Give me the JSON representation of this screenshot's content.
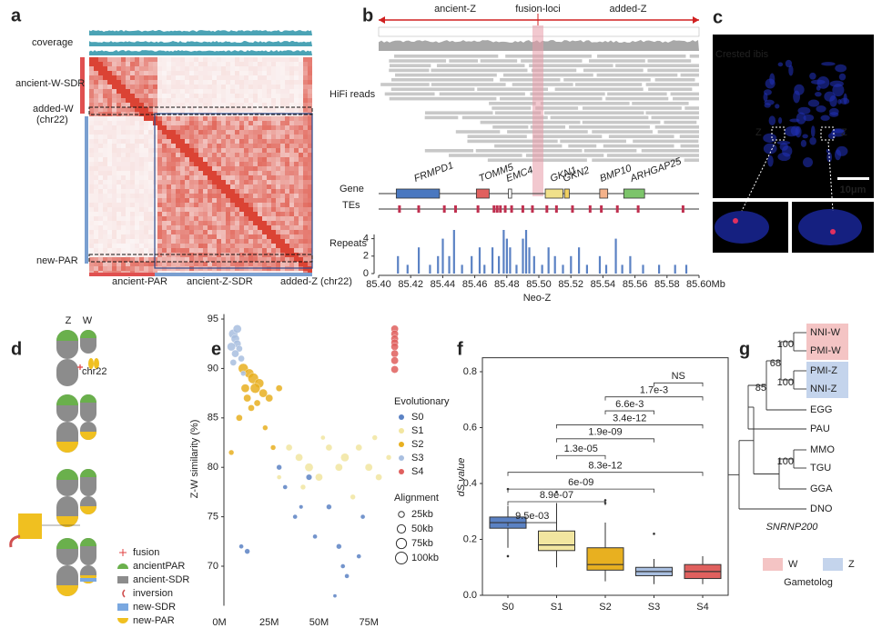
{
  "panel_labels": [
    "a",
    "b",
    "c",
    "d",
    "e",
    "f",
    "g"
  ],
  "heatmap": {
    "track": "coverage",
    "row_labels": [
      "ancient-W-SDR",
      "added-W",
      "(chr22)",
      "new-PAR"
    ],
    "col_labels": [
      "ancient-PAR",
      "ancient-Z-SDR",
      "added-Z (chr22)"
    ]
  },
  "browser": {
    "regions": [
      "ancient-Z",
      "fusion-loci",
      "added-Z"
    ],
    "track_labels": [
      "HiFi reads",
      "Gene",
      "TEs"
    ],
    "genes": [
      {
        "name": "FRMPD1",
        "start": 85.411,
        "end": 85.438,
        "color": "#4a78c0"
      },
      {
        "name": "TOMM5",
        "start": 85.461,
        "end": 85.469,
        "color": "#e0605e"
      },
      {
        "name": "EMC4",
        "start": 85.481,
        "end": 85.483,
        "color": "#ffffff"
      },
      {
        "name": "GKN1",
        "start": 85.504,
        "end": 85.515,
        "color": "#f0e08a"
      },
      {
        "name": "GKN2",
        "start": 85.516,
        "end": 85.519,
        "color": "#f0d060"
      },
      {
        "name": "BMP10",
        "start": 85.538,
        "end": 85.543,
        "color": "#f5b28a"
      },
      {
        "name": "ARHGAP25",
        "start": 85.553,
        "end": 85.566,
        "color": "#7cc46a"
      }
    ],
    "te_positions": [
      85.413,
      85.425,
      85.441,
      85.448,
      85.462,
      85.472,
      85.474,
      85.476,
      85.479,
      85.483,
      85.49,
      85.496,
      85.505,
      85.511,
      85.521,
      85.532,
      85.539,
      85.549,
      85.562,
      85.59
    ]
  },
  "microscopy": {
    "species": "Crested ibis",
    "labels": [
      "Z",
      "Z"
    ],
    "scale": "10μm"
  },
  "diagram": {
    "columns": [
      "Z",
      "W"
    ],
    "chr22": "chr22",
    "legend": [
      "fusion",
      "ancientPAR",
      "ancient-SDR",
      "inversion",
      "new-SDR",
      "new-PAR"
    ]
  },
  "chart_data": [
    {
      "type": "bar",
      "ylabel": "Repeats",
      "xlabel": "Neo-Z",
      "color": "#5b82c4",
      "x": [
        85.412,
        85.418,
        85.425,
        85.432,
        85.437,
        85.44,
        85.444,
        85.447,
        85.452,
        85.458,
        85.463,
        85.466,
        85.471,
        85.475,
        85.478,
        85.48,
        85.482,
        85.486,
        85.49,
        85.492,
        85.494,
        85.497,
        85.502,
        85.506,
        85.51,
        85.515,
        85.52,
        85.525,
        85.53,
        85.538,
        85.542,
        85.548,
        85.552,
        85.557,
        85.565,
        85.575,
        85.585,
        85.592
      ],
      "values": [
        2,
        1,
        3,
        1,
        2,
        4,
        2,
        5,
        1,
        2,
        3,
        1,
        3,
        2,
        5,
        4,
        3,
        1,
        4,
        5,
        3,
        2,
        1,
        3,
        2,
        1,
        2,
        3,
        1,
        2,
        1,
        4,
        1,
        2,
        1,
        1,
        1,
        1
      ],
      "xlim": [
        85.4,
        85.6
      ],
      "xticks": [
        {
          "value": 85.4,
          "label": "85.40"
        },
        {
          "value": 85.42,
          "label": "85.42"
        },
        {
          "value": 85.44,
          "label": "85.44"
        },
        {
          "value": 85.46,
          "label": "85.46"
        },
        {
          "value": 85.48,
          "label": "85.48"
        },
        {
          "value": 85.5,
          "label": "85.50"
        },
        {
          "value": 85.52,
          "label": "85.52"
        },
        {
          "value": 85.54,
          "label": "85.54"
        },
        {
          "value": 85.56,
          "label": "85.56"
        },
        {
          "value": 85.58,
          "label": "85.58"
        },
        {
          "value": 85.6,
          "label": "85.60Mb"
        }
      ],
      "ylim": [
        0,
        5
      ],
      "yticks": [
        0,
        2,
        4
      ]
    },
    {
      "type": "scatter",
      "ylabel": "Z-W similarity (%)",
      "legend_title": "Evolutionary",
      "xlim": [
        0,
        90
      ],
      "xticks": [
        {
          "value": 0,
          "label": "0M"
        },
        {
          "value": 25,
          "label": "25M"
        },
        {
          "value": 50,
          "label": "50M"
        },
        {
          "value": 75,
          "label": "75M"
        }
      ],
      "ylim": [
        66,
        95.5
      ],
      "yticks": [
        70,
        75,
        80,
        85,
        90,
        95
      ],
      "size_legend": {
        "title": "Alignment",
        "sizes": [
          {
            "value": 25,
            "label": "25kb"
          },
          {
            "value": 50,
            "label": "50kb"
          },
          {
            "value": 75,
            "label": "75kb"
          },
          {
            "value": 100,
            "label": "100kb"
          }
        ]
      },
      "series": [
        {
          "name": "S0",
          "color": "#5b82c4",
          "x": [
            11,
            14,
            30,
            33,
            38,
            45,
            48,
            55,
            60,
            62,
            64,
            70,
            72,
            58,
            41
          ],
          "values": [
            72,
            71.5,
            80,
            78,
            75,
            79,
            73,
            76,
            72,
            70,
            69,
            71,
            75,
            67,
            76
          ],
          "sizes": [
            15,
            20,
            20,
            15,
            15,
            25,
            15,
            20,
            20,
            15,
            15,
            15,
            15,
            10,
            12
          ]
        },
        {
          "name": "S1",
          "color": "#f2e6a0",
          "x": [
            35,
            40,
            45,
            50,
            55,
            60,
            63,
            70,
            75,
            80,
            85,
            42,
            67,
            30,
            52,
            78
          ],
          "values": [
            82,
            81,
            80,
            79,
            82,
            80,
            81,
            82,
            80,
            79,
            81,
            78,
            77,
            79,
            83,
            83
          ],
          "sizes": [
            30,
            40,
            50,
            40,
            30,
            40,
            50,
            30,
            40,
            30,
            20,
            20,
            20,
            15,
            15,
            20
          ]
        },
        {
          "name": "S2",
          "color": "#e8b020",
          "x": [
            12,
            15,
            17,
            20,
            13,
            18,
            22,
            14,
            25,
            19,
            16,
            10,
            30,
            6,
            27,
            23
          ],
          "values": [
            90,
            89.5,
            89,
            88.5,
            88,
            88,
            87.5,
            87,
            87,
            86.5,
            86,
            85,
            88,
            81.5,
            82,
            84
          ],
          "sizes": [
            70,
            60,
            80,
            60,
            50,
            70,
            50,
            40,
            40,
            30,
            30,
            30,
            30,
            20,
            20,
            20
          ]
        },
        {
          "name": "S3",
          "color": "#a9bfe0",
          "x": [
            7,
            8,
            9,
            6,
            10,
            8,
            11,
            7,
            12,
            9
          ],
          "values": [
            93.5,
            93,
            92.5,
            92.2,
            92,
            91.5,
            91,
            90.6,
            89.5,
            94
          ],
          "sizes": [
            60,
            50,
            40,
            50,
            30,
            40,
            30,
            30,
            20,
            50
          ]
        },
        {
          "name": "S4",
          "color": "#e0605e",
          "x": [
            88,
            88,
            88,
            88,
            88,
            88,
            88,
            88
          ],
          "values": [
            94,
            93.5,
            93,
            92.6,
            92.2,
            91.5,
            90.8,
            89.9
          ],
          "sizes": [
            40,
            40,
            40,
            40,
            40,
            40,
            40,
            40
          ]
        }
      ]
    },
    {
      "type": "box",
      "ylabel": "dS value",
      "categories": [
        "S0",
        "S1",
        "S2",
        "S3",
        "S4"
      ],
      "colors": [
        "#5b82c4",
        "#f2e6a0",
        "#e8b020",
        "#a9bfe0",
        "#e0605e"
      ],
      "ylim": [
        0,
        0.85
      ],
      "yticks": [
        {
          "value": 0,
          "label": "0.0"
        },
        0.2,
        0.4,
        0.6,
        0.8
      ],
      "boxes": [
        {
          "min": 0.17,
          "q1": 0.24,
          "median": 0.26,
          "q3": 0.28,
          "max": 0.32,
          "outliers": [
            0.38,
            0.14
          ]
        },
        {
          "min": 0.1,
          "q1": 0.16,
          "median": 0.18,
          "q3": 0.23,
          "max": 0.33,
          "outliers": [
            0.37
          ]
        },
        {
          "min": 0.05,
          "q1": 0.09,
          "median": 0.11,
          "q3": 0.17,
          "max": 0.26,
          "outliers": [
            0.34,
            0.33
          ]
        },
        {
          "min": 0.04,
          "q1": 0.07,
          "median": 0.085,
          "q3": 0.1,
          "max": 0.13,
          "outliers": [
            0.22
          ]
        },
        {
          "min": 0.04,
          "q1": 0.06,
          "median": 0.085,
          "q3": 0.11,
          "max": 0.14,
          "outliers": []
        }
      ],
      "brackets": [
        {
          "from": 3,
          "to": 4,
          "y": 0.76,
          "label": "NS"
        },
        {
          "from": 2,
          "to": 4,
          "y": 0.71,
          "label": "1.7e-3"
        },
        {
          "from": 2,
          "to": 3,
          "y": 0.66,
          "label": "6.6e-3"
        },
        {
          "from": 1,
          "to": 4,
          "y": 0.61,
          "label": "3.4e-12"
        },
        {
          "from": 1,
          "to": 3,
          "y": 0.56,
          "label": "1.9e-09"
        },
        {
          "from": 1,
          "to": 2,
          "y": 0.5,
          "label": "1.3e-05"
        },
        {
          "from": 0,
          "to": 4,
          "y": 0.44,
          "label": "8.3e-12"
        },
        {
          "from": 0,
          "to": 3,
          "y": 0.38,
          "label": "6e-09"
        },
        {
          "from": 0,
          "to": 2,
          "y": 0.335,
          "label": "8.9e-07"
        },
        {
          "from": 0,
          "to": 1,
          "y": 0.26,
          "label": "9.5e-03"
        }
      ]
    }
  ],
  "tree": {
    "leaves": [
      "NNI-W",
      "PMI-W",
      "PMI-Z",
      "NNI-Z",
      "EGG",
      "PAU",
      "MMO",
      "TGU",
      "GGA",
      "DNO"
    ],
    "bootstrap": [
      100,
      100,
      68,
      85,
      100
    ],
    "gene": "SNRNP200",
    "legend": {
      "title": "Gametolog",
      "items": [
        "W",
        "Z"
      ],
      "colors": [
        "#f4c4c4",
        "#c4d4ec"
      ]
    }
  }
}
